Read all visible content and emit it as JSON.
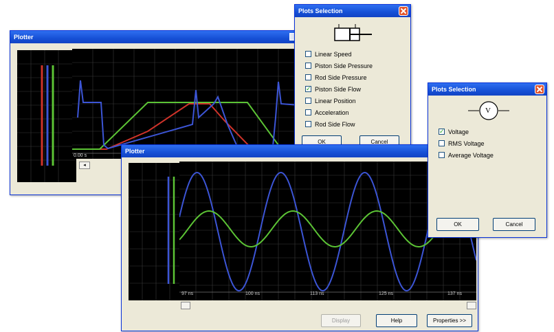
{
  "plotter_back": {
    "title": "Plotter",
    "tick_label": "0.00 s",
    "scroll_arrow": "◂"
  },
  "plots_selection_cylinder": {
    "title": "Plots Selection",
    "options": [
      {
        "label": "Linear Speed",
        "checked": false
      },
      {
        "label": "Piston Side Pressure",
        "checked": false
      },
      {
        "label": "Rod Side Pressure",
        "checked": false
      },
      {
        "label": "Piston Side Flow",
        "checked": true
      },
      {
        "label": "Linear Position",
        "checked": false
      },
      {
        "label": "Acceleration",
        "checked": false
      },
      {
        "label": "Rod Side Flow",
        "checked": false
      }
    ],
    "ok_label": "OK",
    "cancel_label": "Cancel"
  },
  "plots_selection_voltage": {
    "title": "Plots Selection",
    "icon_symbol": "V",
    "options": [
      {
        "label": "Voltage",
        "checked": true
      },
      {
        "label": "RMS Voltage",
        "checked": false
      },
      {
        "label": "Average Voltage",
        "checked": false
      }
    ],
    "ok_label": "OK",
    "cancel_label": "Cancel"
  },
  "plotter_front": {
    "title": "Plotter",
    "x_ticks": [
      "97 ns",
      "100 ns",
      "113 ns",
      "125 ns",
      "137 ns"
    ],
    "buttons": {
      "display": "Display",
      "help": "Help",
      "properties": "Properties >>"
    }
  },
  "colors": {
    "blue": "#3c55d6",
    "green": "#5cc435",
    "red": "#d0332a",
    "title": "#1650d6"
  }
}
